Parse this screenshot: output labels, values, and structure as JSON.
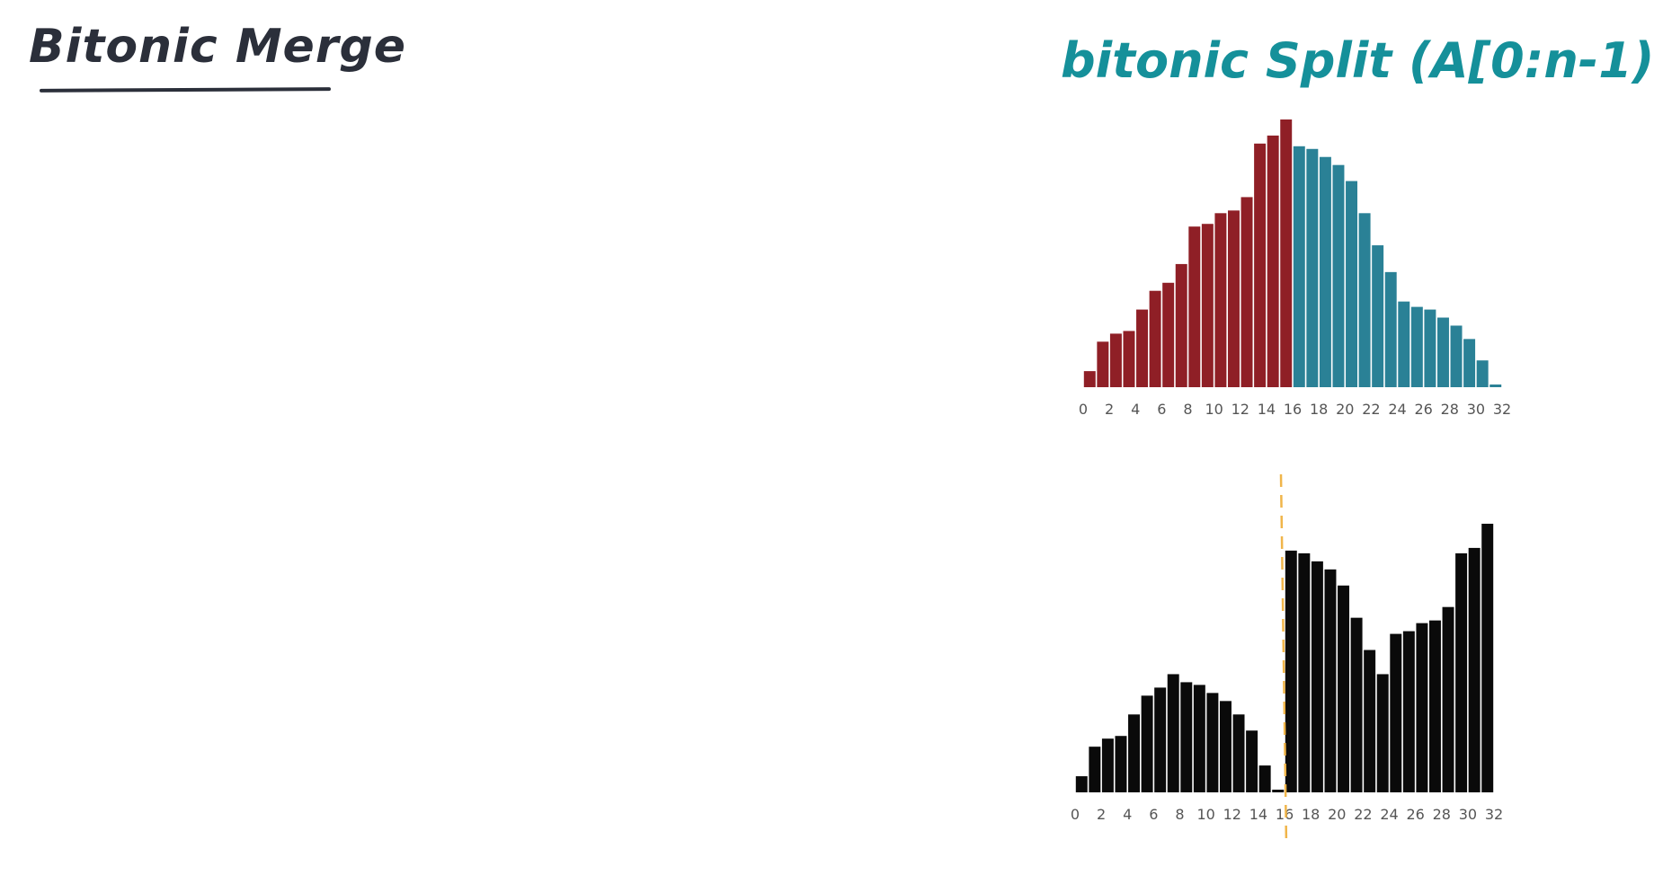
{
  "header": {
    "left_title": "Bitonic Merge",
    "right_title": "bitonic Split (A[0:n-1)"
  },
  "chart_data": [
    {
      "type": "bar",
      "name": "",
      "x": [
        0,
        1,
        2,
        3,
        4,
        5,
        6,
        7,
        8,
        9,
        10,
        11,
        12,
        13,
        14,
        15,
        16,
        17,
        18,
        19,
        20,
        21,
        22,
        23,
        24,
        25,
        26,
        27,
        28,
        29,
        30,
        31
      ],
      "values": [
        6,
        17,
        20,
        21,
        29,
        36,
        39,
        46,
        60,
        61,
        65,
        66,
        71,
        91,
        94,
        100,
        90,
        89,
        86,
        83,
        77,
        65,
        53,
        43,
        32,
        30,
        29,
        26,
        23,
        18,
        10,
        1
      ],
      "first_half_color": "#8f1f26",
      "second_half_color": "#2a8196",
      "x_ticks": [
        "0",
        "2",
        "4",
        "6",
        "8",
        "10",
        "12",
        "14",
        "16",
        "18",
        "20",
        "22",
        "24",
        "26",
        "28",
        "30",
        "32"
      ],
      "xlim": [
        0,
        32
      ],
      "ylim": [
        0,
        100
      ],
      "grid": false,
      "legend": "none"
    },
    {
      "type": "bar",
      "name": "",
      "x": [
        0,
        1,
        2,
        3,
        4,
        5,
        6,
        7,
        8,
        9,
        10,
        11,
        12,
        13,
        14,
        15,
        16,
        17,
        18,
        19,
        20,
        21,
        22,
        23,
        24,
        25,
        26,
        27,
        28,
        29,
        30,
        31
      ],
      "values": [
        6,
        17,
        20,
        21,
        29,
        36,
        39,
        44,
        41,
        40,
        37,
        34,
        29,
        23,
        10,
        1,
        90,
        89,
        86,
        83,
        77,
        65,
        53,
        44,
        59,
        60,
        63,
        64,
        69,
        89,
        91,
        100
      ],
      "bar_color": "#0a0a0a",
      "split_line_x": 16,
      "split_line_color": "#f0b54a",
      "x_ticks": [
        "0",
        "2",
        "4",
        "6",
        "8",
        "10",
        "12",
        "14",
        "16",
        "18",
        "20",
        "22",
        "24",
        "26",
        "28",
        "30",
        "32"
      ],
      "xlim": [
        0,
        32
      ],
      "ylim": [
        0,
        100
      ],
      "grid": false,
      "legend": "none"
    }
  ]
}
